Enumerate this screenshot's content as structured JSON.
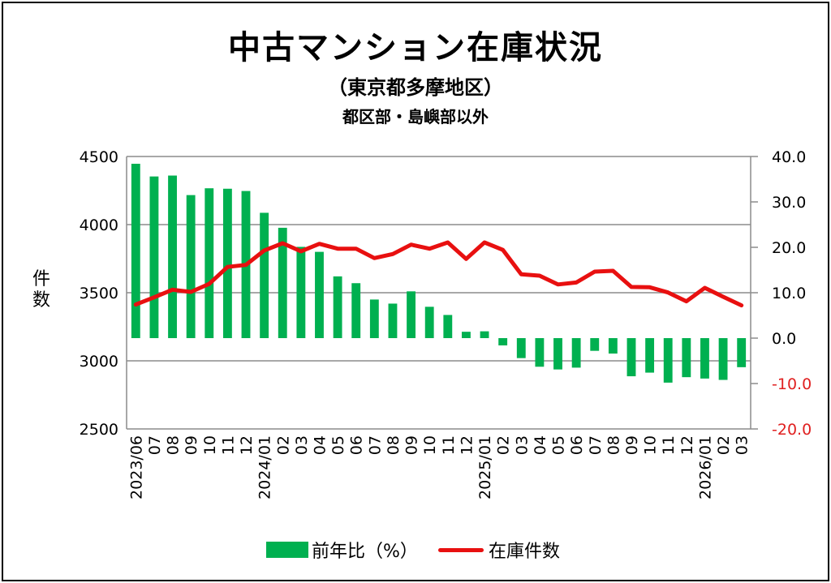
{
  "chart_data": {
    "type": "bar+line",
    "title": "中古マンション在庫状況",
    "subtitle": "（東京都多摩地区）",
    "subtitle2": "都区部・島嶼部以外",
    "ylabel_left": "件数",
    "ylim_left": [
      2500,
      4500
    ],
    "yticks_left": [
      "4500",
      "4000",
      "3500",
      "3000",
      "2500"
    ],
    "ylim_right": [
      -20,
      40
    ],
    "yticks_right": [
      {
        "label": "40.0",
        "value": 40,
        "color": "#000000"
      },
      {
        "label": "30.0",
        "value": 30,
        "color": "#000000"
      },
      {
        "label": "20.0",
        "value": 20,
        "color": "#000000"
      },
      {
        "label": "10.0",
        "value": 10,
        "color": "#000000"
      },
      {
        "label": "0.0",
        "value": 0,
        "color": "#000000"
      },
      {
        "label": "-10.0",
        "value": -10,
        "color": "#e02020"
      },
      {
        "label": "-20.0",
        "value": -20,
        "color": "#e02020"
      }
    ],
    "grid": true,
    "legend_position": "bottom",
    "categories": [
      "2023/06",
      "07",
      "08",
      "09",
      "10",
      "11",
      "12",
      "2024/01",
      "02",
      "03",
      "04",
      "05",
      "06",
      "07",
      "08",
      "09",
      "10",
      "11",
      "12",
      "2025/01",
      "02",
      "03",
      "04",
      "05",
      "06",
      "07",
      "08",
      "09",
      "10",
      "11",
      "12",
      "2026/01",
      "02",
      "03"
    ],
    "series": [
      {
        "name": "前年比（%）",
        "type": "bar",
        "axis": "right",
        "color": "#00b050",
        "values": [
          38.4,
          35.6,
          35.8,
          31.5,
          33.0,
          32.9,
          32.4,
          27.6,
          24.3,
          20.1,
          19.0,
          13.6,
          12.1,
          8.5,
          7.6,
          10.3,
          6.9,
          5.1,
          1.4,
          1.5,
          -1.6,
          -4.4,
          -6.3,
          -6.9,
          -6.5,
          -2.8,
          -3.4,
          -8.4,
          -7.6,
          -9.8,
          -8.6,
          -8.9,
          -9.2,
          -6.4
        ]
      },
      {
        "name": "在庫件数",
        "type": "line",
        "axis": "left",
        "color": "#e81010",
        "values": [
          3413,
          3466,
          3522,
          3506,
          3565,
          3689,
          3704,
          3810,
          3863,
          3804,
          3859,
          3823,
          3823,
          3754,
          3784,
          3853,
          3823,
          3869,
          3748,
          3869,
          3814,
          3635,
          3625,
          3561,
          3575,
          3655,
          3661,
          3542,
          3540,
          3502,
          3437,
          3536,
          3470,
          3407
        ]
      }
    ]
  }
}
